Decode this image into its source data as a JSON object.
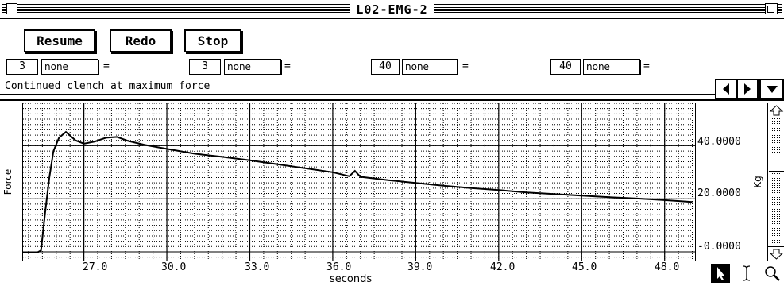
{
  "window": {
    "title": "L02-EMG-2"
  },
  "toolbar": {
    "resume_label": "Resume",
    "redo_label": "Redo",
    "stop_label": "Stop"
  },
  "channels": [
    {
      "number": "3",
      "option": "none",
      "eq": "="
    },
    {
      "number": "3",
      "option": "none",
      "eq": "="
    },
    {
      "number": "40",
      "option": "none",
      "eq": "="
    },
    {
      "number": "40",
      "option": "none",
      "eq": "="
    }
  ],
  "journal": {
    "text": "Continued clench at maximum force"
  },
  "plot": {
    "left_label": "Force",
    "right_label": "Kg",
    "xaxis_title": "seconds",
    "y_ticks": [
      "40.0000",
      "20.0000",
      "-0.0000"
    ],
    "x_ticks": [
      "27.0",
      "30.0",
      "33.0",
      "36.0",
      "39.0",
      "42.0",
      "45.0",
      "48.0"
    ],
    "trace": [
      [
        24.8,
        -0.3
      ],
      [
        25.3,
        -0.3
      ],
      [
        25.45,
        0.5
      ],
      [
        25.6,
        15
      ],
      [
        25.75,
        28
      ],
      [
        25.9,
        38
      ],
      [
        26.1,
        43
      ],
      [
        26.35,
        45.2
      ],
      [
        26.7,
        42
      ],
      [
        27.0,
        40.8
      ],
      [
        27.4,
        41.6
      ],
      [
        27.8,
        43
      ],
      [
        28.2,
        43.3
      ],
      [
        28.6,
        41.8
      ],
      [
        29.2,
        40.3
      ],
      [
        30.0,
        38.8
      ],
      [
        31.0,
        37
      ],
      [
        32.0,
        35.8
      ],
      [
        33.0,
        34.5
      ],
      [
        34.0,
        33
      ],
      [
        35.0,
        31.5
      ],
      [
        36.0,
        30
      ],
      [
        36.6,
        28.5
      ],
      [
        36.8,
        30.5
      ],
      [
        37.0,
        28.3
      ],
      [
        38.0,
        27
      ],
      [
        39.0,
        26
      ],
      [
        40.0,
        24.9
      ],
      [
        41.0,
        24
      ],
      [
        42.0,
        23.3
      ],
      [
        43.0,
        22.4
      ],
      [
        44.0,
        21.8
      ],
      [
        45.0,
        21.2
      ],
      [
        46.0,
        20.6
      ],
      [
        47.0,
        20.1
      ],
      [
        48.0,
        19.5
      ],
      [
        49.0,
        18.8
      ]
    ],
    "x_range": [
      24.8,
      49.1
    ],
    "y_range": [
      -3.3,
      56
    ]
  },
  "tools": {
    "arrow": "arrow-tool-icon",
    "ibeam": "ibeam-tool-icon",
    "zoom": "zoom-tool-icon"
  }
}
